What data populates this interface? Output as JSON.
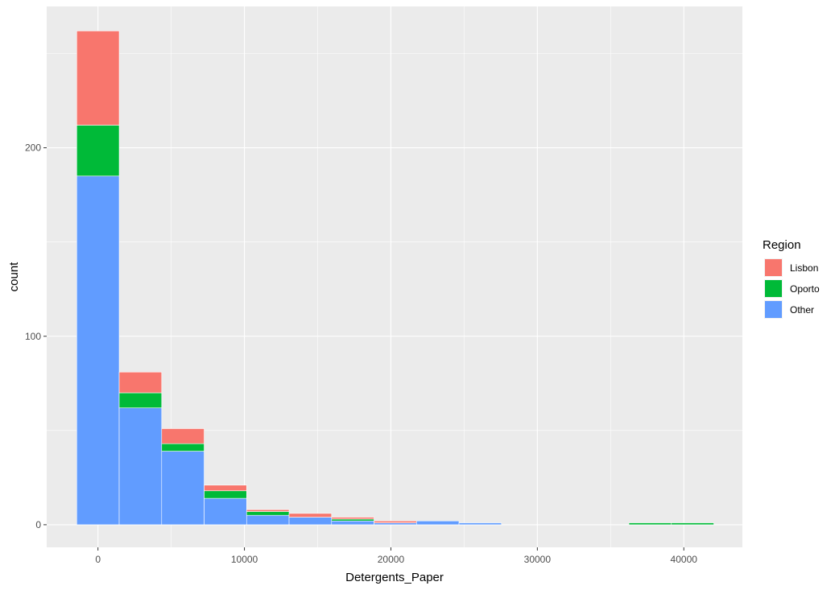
{
  "chart_data": {
    "type": "bar",
    "subtype": "stacked-histogram",
    "xlabel": "Detergents_Paper",
    "ylabel": "count",
    "xlim": [
      -3500,
      44000
    ],
    "ylim": [
      -12,
      275
    ],
    "x_ticks": [
      0,
      10000,
      20000,
      30000,
      40000
    ],
    "x_tick_labels": [
      "0",
      "10000",
      "20000",
      "30000",
      "40000"
    ],
    "y_ticks": [
      0,
      100,
      200
    ],
    "y_tick_labels": [
      "0",
      "100",
      "200"
    ],
    "bin_width": 2900,
    "bin_centers": [
      0,
      2900,
      5800,
      8700,
      11600,
      14500,
      17400,
      20300,
      23200,
      26100,
      29000,
      31900,
      34800,
      37700,
      40600
    ],
    "series": [
      {
        "name": "Other",
        "color": "#619CFF",
        "values": [
          185,
          62,
          39,
          14,
          5,
          4,
          2,
          1,
          2,
          1,
          0,
          0,
          0,
          0,
          0
        ]
      },
      {
        "name": "Oporto",
        "color": "#00BA38",
        "values": [
          27,
          8,
          4,
          4,
          2,
          0,
          1,
          0,
          0,
          0,
          0,
          0,
          0,
          1,
          1
        ]
      },
      {
        "name": "Lisbon",
        "color": "#F8766D",
        "values": [
          50,
          11,
          8,
          3,
          1,
          2,
          1,
          1,
          0,
          0,
          0,
          0,
          0,
          0,
          0
        ]
      }
    ],
    "legend": {
      "title": "Region",
      "position": "right",
      "entries": [
        {
          "label": "Lisbon",
          "color": "#F8766D"
        },
        {
          "label": "Oporto",
          "color": "#00BA38"
        },
        {
          "label": "Other",
          "color": "#619CFF"
        }
      ]
    },
    "grid": true,
    "panel_background": "#EBEBEB"
  }
}
